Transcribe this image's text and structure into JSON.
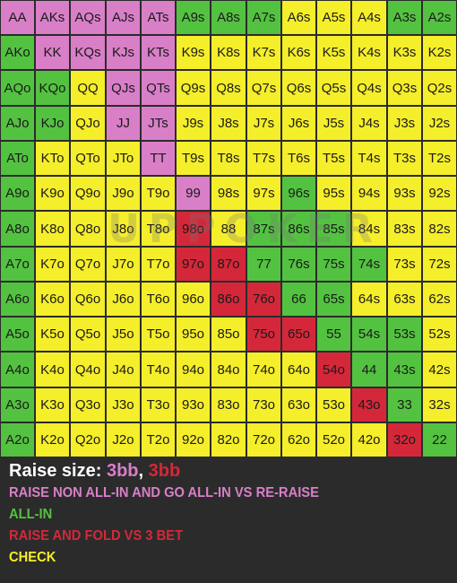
{
  "colors": {
    "raise_non_allin": "#d97fc8",
    "allin": "#54c241",
    "raise_fold": "#d4283a",
    "check": "#f5ee2a",
    "background": "#2b2b2b",
    "text_white": "#ffffff"
  },
  "watermark": "UPPOKER",
  "chart_data": {
    "type": "heatmap",
    "title": "",
    "ranks": [
      "A",
      "K",
      "Q",
      "J",
      "T",
      "9",
      "8",
      "7",
      "6",
      "5",
      "4",
      "3",
      "2"
    ],
    "categories": {
      "P": "RAISE NON ALL-IN AND GO ALL-IN VS RE-RAISE",
      "G": "ALL-IN",
      "R": "RAISE AND FOLD VS 3 BET",
      "Y": "CHECK"
    },
    "rows": [
      {
        "labels": [
          "AA",
          "AKs",
          "AQs",
          "AJs",
          "ATs",
          "A9s",
          "A8s",
          "A7s",
          "A6s",
          "A5s",
          "A4s",
          "A3s",
          "A2s"
        ],
        "actions": "PPPPPGGGYYYGG"
      },
      {
        "labels": [
          "AKo",
          "KK",
          "KQs",
          "KJs",
          "KTs",
          "K9s",
          "K8s",
          "K7s",
          "K6s",
          "K5s",
          "K4s",
          "K3s",
          "K2s"
        ],
        "actions": "GPPPPYYYYYYYY"
      },
      {
        "labels": [
          "AQo",
          "KQo",
          "QQ",
          "QJs",
          "QTs",
          "Q9s",
          "Q8s",
          "Q7s",
          "Q6s",
          "Q5s",
          "Q4s",
          "Q3s",
          "Q2s"
        ],
        "actions": "GGYPPYYYYYYYY"
      },
      {
        "labels": [
          "AJo",
          "KJo",
          "QJo",
          "JJ",
          "JTs",
          "J9s",
          "J8s",
          "J7s",
          "J6s",
          "J5s",
          "J4s",
          "J3s",
          "J2s"
        ],
        "actions": "GGYPPYYYYYYYY"
      },
      {
        "labels": [
          "ATo",
          "KTo",
          "QTo",
          "JTo",
          "TT",
          "T9s",
          "T8s",
          "T7s",
          "T6s",
          "T5s",
          "T4s",
          "T3s",
          "T2s"
        ],
        "actions": "GYYYPYYYYYYYY"
      },
      {
        "labels": [
          "A9o",
          "K9o",
          "Q9o",
          "J9o",
          "T9o",
          "99",
          "98s",
          "97s",
          "96s",
          "95s",
          "94s",
          "93s",
          "92s"
        ],
        "actions": "GYYYYPYYGYYYY"
      },
      {
        "labels": [
          "A8o",
          "K8o",
          "Q8o",
          "J8o",
          "T8o",
          "98o",
          "88",
          "87s",
          "86s",
          "85s",
          "84s",
          "83s",
          "82s"
        ],
        "actions": "GYYYYRYGGGYYY"
      },
      {
        "labels": [
          "A7o",
          "K7o",
          "Q7o",
          "J7o",
          "T7o",
          "97o",
          "87o",
          "77",
          "76s",
          "75s",
          "74s",
          "73s",
          "72s"
        ],
        "actions": "GYYYYRRGGGGYY"
      },
      {
        "labels": [
          "A6o",
          "K6o",
          "Q6o",
          "J6o",
          "T6o",
          "96o",
          "86o",
          "76o",
          "66",
          "65s",
          "64s",
          "63s",
          "62s"
        ],
        "actions": "GYYYYYRRGGYYY"
      },
      {
        "labels": [
          "A5o",
          "K5o",
          "Q5o",
          "J5o",
          "T5o",
          "95o",
          "85o",
          "75o",
          "65o",
          "55",
          "54s",
          "53s",
          "52s"
        ],
        "actions": "GYYYYYYRRGGGY"
      },
      {
        "labels": [
          "A4o",
          "K4o",
          "Q4o",
          "J4o",
          "T4o",
          "94o",
          "84o",
          "74o",
          "64o",
          "54o",
          "44",
          "43s",
          "42s"
        ],
        "actions": "GYYYYYYYYRGGY"
      },
      {
        "labels": [
          "A3o",
          "K3o",
          "Q3o",
          "J3o",
          "T3o",
          "93o",
          "83o",
          "73o",
          "63o",
          "53o",
          "43o",
          "33",
          "32s"
        ],
        "actions": "GYYYYYYYYYRGY"
      },
      {
        "labels": [
          "A2o",
          "K2o",
          "Q2o",
          "J2o",
          "T2o",
          "92o",
          "82o",
          "72o",
          "62o",
          "52o",
          "42o",
          "32o",
          "22"
        ],
        "actions": "GYYYYYYYYYYRG"
      }
    ]
  },
  "legend": {
    "raise_size_label": "Raise size:",
    "raise_size_value_1": "3bb",
    "raise_size_sep": ",",
    "raise_size_value_2": "3bb",
    "line_raise_allin": "RAISE NON ALL-IN AND GO ALL-IN VS RE-RAISE",
    "line_allin": "ALL-IN",
    "line_raise_fold": "RAISE AND FOLD VS 3 BET",
    "line_check": "CHECK"
  }
}
